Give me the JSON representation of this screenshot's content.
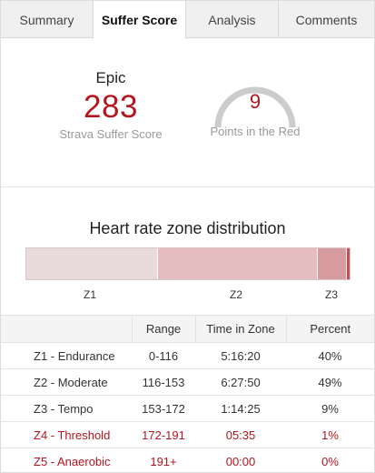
{
  "tabs": [
    {
      "label": "Summary",
      "active": false
    },
    {
      "label": "Suffer Score",
      "active": true
    },
    {
      "label": "Analysis",
      "active": false
    },
    {
      "label": "Comments",
      "active": false
    }
  ],
  "summary": {
    "rating": "Epic",
    "score": "283",
    "score_label": "Strava Suffer Score",
    "points_in_red": "9",
    "points_in_red_label": "Points in the Red"
  },
  "distribution": {
    "title": "Heart rate zone distribution",
    "zone_fractions": [
      0.4,
      0.49,
      0.09,
      0.01,
      0.0
    ],
    "zone_colors": [
      "#e9dadb",
      "#e6bdbe",
      "#d69b9e",
      "#c45055",
      "#b3161e"
    ],
    "zone_labels": [
      "Z1",
      "Z2",
      "Z3"
    ]
  },
  "table": {
    "headers": [
      "",
      "Range",
      "Time in Zone",
      "Percent"
    ],
    "rows": [
      {
        "zone": "Z1 - Endurance",
        "range": "0-116",
        "time": "5:16:20",
        "percent": "40%",
        "hot": false
      },
      {
        "zone": "Z2 - Moderate",
        "range": "116-153",
        "time": "6:27:50",
        "percent": "49%",
        "hot": false
      },
      {
        "zone": "Z3 - Tempo",
        "range": "153-172",
        "time": "1:14:25",
        "percent": "9%",
        "hot": false
      },
      {
        "zone": "Z4 - Threshold",
        "range": "172-191",
        "time": "05:35",
        "percent": "1%",
        "hot": true
      },
      {
        "zone": "Z5 - Anaerobic",
        "range": "191+",
        "time": "00:00",
        "percent": "0%",
        "hot": true
      }
    ]
  },
  "colors": {
    "accent_red": "#b3161e",
    "gauge_track": "#cccccc"
  }
}
